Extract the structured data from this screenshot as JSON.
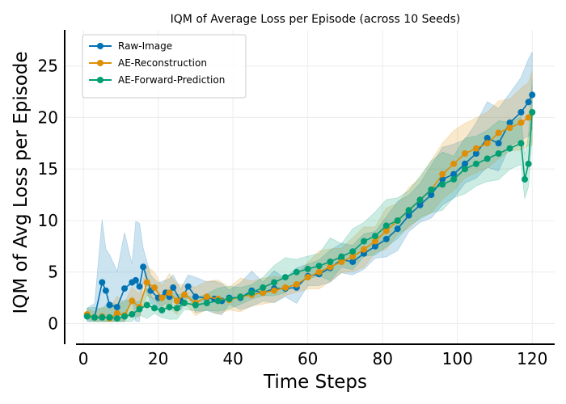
{
  "chart_data": {
    "type": "line",
    "title": "IQM of Average Loss per Episode (across 10 Seeds)",
    "xlabel": "Time Steps",
    "ylabel": "IQM of Avg Loss per Episode",
    "xlim": [
      -5,
      126
    ],
    "ylim": [
      -2,
      28.5
    ],
    "xticks": [
      0,
      20,
      40,
      60,
      80,
      100,
      120
    ],
    "yticks": [
      0,
      5,
      10,
      15,
      20,
      25
    ],
    "grid": true,
    "legend_position": "top-left",
    "series": [
      {
        "name": "Raw-Image",
        "color": "#0173b2",
        "x": [
          1,
          3,
          5,
          6,
          7,
          9,
          11,
          13,
          14,
          15,
          16,
          18,
          20,
          22,
          23,
          24,
          26,
          28,
          30,
          33,
          35,
          37,
          39,
          42,
          45,
          48,
          51,
          54,
          57,
          60,
          63,
          66,
          69,
          72,
          75,
          78,
          81,
          84,
          87,
          90,
          93,
          96,
          99,
          102,
          105,
          108,
          111,
          114,
          117,
          119,
          120
        ],
        "y": [
          0.8,
          0.6,
          4.0,
          3.2,
          1.8,
          1.6,
          3.4,
          4.0,
          4.2,
          3.6,
          5.5,
          3.2,
          2.5,
          3.0,
          2.6,
          3.5,
          2.2,
          3.6,
          2.6,
          2.5,
          2.4,
          2.2,
          2.5,
          2.5,
          3.2,
          3.0,
          3.4,
          3.4,
          3.5,
          4.6,
          4.8,
          5.4,
          6.2,
          6.0,
          6.8,
          7.5,
          8.2,
          9.2,
          10.5,
          11.5,
          12.5,
          14.0,
          14.5,
          15.5,
          16.5,
          18.0,
          17.5,
          19.5,
          20.5,
          21.5,
          22.2
        ]
      },
      {
        "name": "AE-Reconstruction",
        "color": "#de8f05",
        "x": [
          1,
          3,
          5,
          7,
          9,
          11,
          13,
          15,
          17,
          19,
          21,
          23,
          25,
          27,
          30,
          33,
          36,
          39,
          42,
          45,
          48,
          51,
          54,
          57,
          60,
          63,
          66,
          69,
          72,
          75,
          78,
          81,
          84,
          87,
          90,
          93,
          96,
          99,
          102,
          105,
          108,
          111,
          114,
          117,
          119,
          120
        ],
        "y": [
          0.9,
          0.6,
          0.7,
          0.5,
          1.0,
          0.8,
          2.2,
          1.6,
          4.0,
          3.5,
          2.5,
          3.0,
          2.2,
          2.8,
          2.0,
          2.6,
          2.4,
          2.3,
          2.6,
          2.8,
          3.0,
          3.2,
          3.5,
          3.8,
          4.5,
          5.0,
          5.5,
          6.0,
          6.5,
          7.2,
          8.0,
          9.0,
          10.0,
          11.0,
          12.0,
          13.0,
          14.5,
          15.5,
          16.5,
          17.0,
          17.5,
          18.5,
          19.0,
          19.5,
          20.0,
          20.5
        ]
      },
      {
        "name": "AE-Forward-Prediction",
        "color": "#029e73",
        "x": [
          1,
          3,
          5,
          7,
          9,
          11,
          13,
          15,
          17,
          19,
          21,
          23,
          25,
          27,
          30,
          33,
          36,
          39,
          42,
          45,
          48,
          51,
          54,
          57,
          60,
          63,
          66,
          69,
          72,
          75,
          78,
          81,
          84,
          87,
          90,
          93,
          96,
          99,
          102,
          105,
          108,
          111,
          114,
          117,
          118,
          119,
          120
        ],
        "y": [
          0.7,
          0.6,
          0.6,
          0.6,
          0.5,
          0.7,
          0.9,
          1.4,
          1.8,
          1.5,
          1.3,
          1.6,
          1.5,
          2.0,
          1.8,
          2.0,
          2.2,
          2.4,
          2.6,
          3.0,
          3.5,
          4.0,
          4.5,
          5.0,
          5.3,
          5.6,
          6.0,
          6.5,
          7.0,
          8.0,
          8.5,
          9.5,
          10.0,
          11.0,
          12.0,
          13.0,
          13.5,
          14.0,
          15.0,
          15.5,
          16.0,
          16.5,
          17.0,
          17.5,
          14.0,
          15.5,
          20.5
        ]
      }
    ]
  }
}
